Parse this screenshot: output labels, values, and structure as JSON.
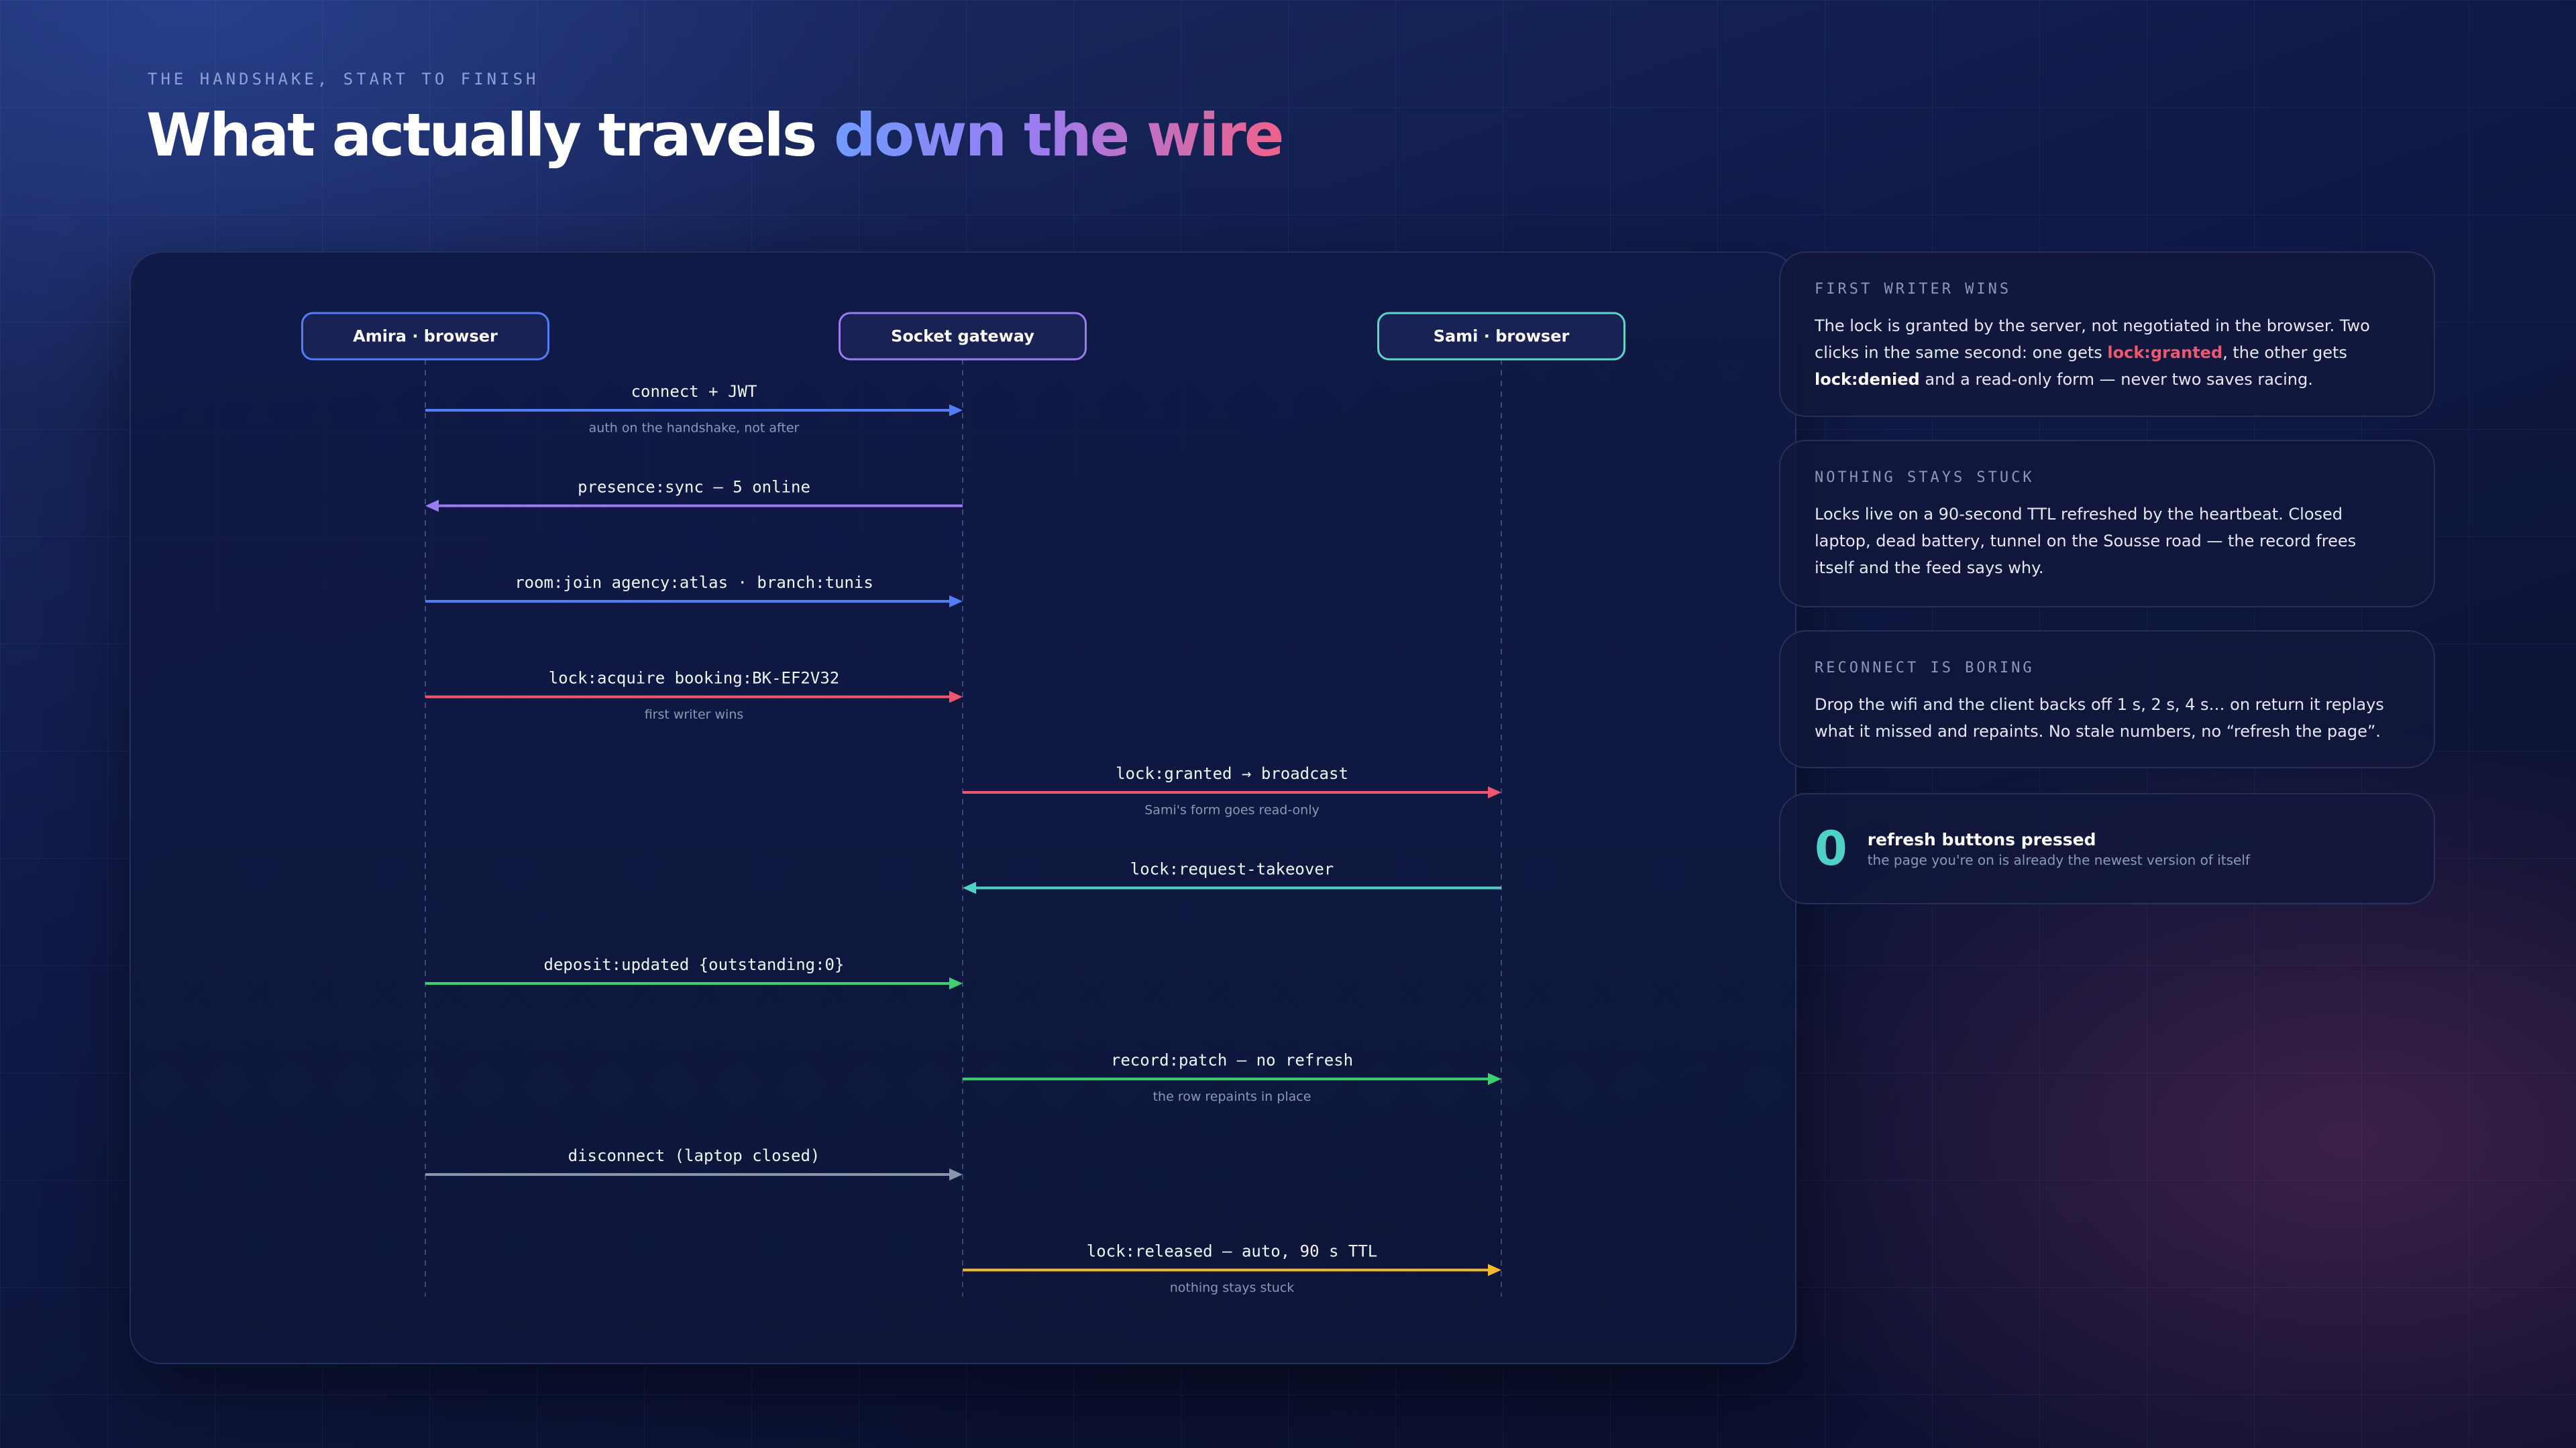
{
  "header": {
    "eyebrow": "THE HANDSHAKE, START TO FINISH",
    "title": "What actually travels",
    "title_accent": "down the wire"
  },
  "participants": [
    {
      "label": "Amira · browser",
      "color": "#4f7ef7"
    },
    {
      "label": "Socket gateway",
      "color": "#9b7cf0"
    },
    {
      "label": "Sami · browser",
      "color": "#5ed6c6"
    }
  ],
  "messages": [
    {
      "label": "connect + JWT",
      "note": "auth on the handshake, not after",
      "from": 0,
      "to": 1,
      "color": "#4f7ef7"
    },
    {
      "label": "presence:sync — 5 online",
      "from": 1,
      "to": 0,
      "color": "#9b7cf0"
    },
    {
      "label": "room:join agency:atlas · branch:tunis",
      "from": 0,
      "to": 1,
      "color": "#4f7ef7"
    },
    {
      "label": "lock:acquire booking:BK-EF2V32",
      "note": "first writer wins",
      "from": 0,
      "to": 1,
      "color": "#f0566e"
    },
    {
      "label": "lock:granted → broadcast",
      "note": "Sami's form goes read-only",
      "from": 1,
      "to": 2,
      "color": "#f0566e"
    },
    {
      "label": "lock:request-takeover",
      "from": 2,
      "to": 1,
      "color": "#4fd1c5"
    },
    {
      "label": "deposit:updated {outstanding:0}",
      "from": 0,
      "to": 1,
      "color": "#3ecf6e"
    },
    {
      "label": "record:patch — no refresh",
      "note": "the row repaints in place",
      "from": 1,
      "to": 2,
      "color": "#3ecf6e"
    },
    {
      "label": "disconnect (laptop closed)",
      "from": 0,
      "to": 1,
      "color": "#8a96b0"
    },
    {
      "label": "lock:released — auto, 90 s TTL",
      "note": "nothing stays stuck",
      "from": 1,
      "to": 2,
      "color": "#f5b92e"
    }
  ],
  "cards": [
    {
      "eyebrow": "FIRST WRITER WINS",
      "body": [
        {
          "text": "The lock is granted by the server, not negotiated in the browser. Two clicks in the same second: one gets "
        },
        {
          "text": "lock:granted",
          "emphasis": "accent"
        },
        {
          "text": ", the other gets "
        },
        {
          "text": "lock:denied",
          "emphasis": "strong"
        },
        {
          "text": " and a read-only form — never two saves racing."
        }
      ]
    },
    {
      "eyebrow": "NOTHING STAYS STUCK",
      "body": [
        {
          "text": "Locks live on a 90-second TTL refreshed by the heartbeat. Closed laptop, dead battery, tunnel on the Sousse road — the record frees itself and the feed says why."
        }
      ]
    },
    {
      "eyebrow": "RECONNECT IS BORING",
      "body": [
        {
          "text": "Drop the wifi and the client backs off 1 s, 2 s, 4 s… on return it replays what it missed and repaints. No stale numbers, no “refresh the page”."
        }
      ]
    }
  ],
  "stat": {
    "value": "0",
    "label": "refresh buttons pressed",
    "sub": "the page you're on is already the newest version of itself"
  }
}
